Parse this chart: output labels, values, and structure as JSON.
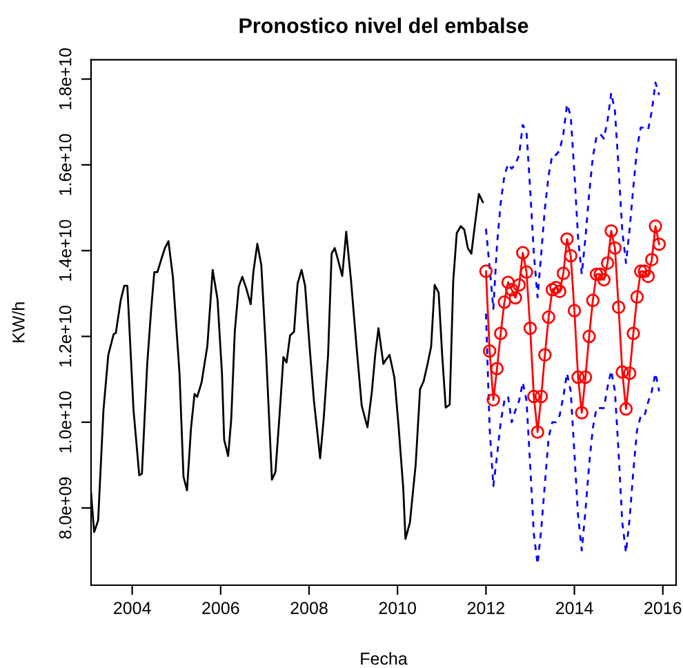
{
  "chart_data": {
    "type": "line",
    "title": "Pronostico nivel del embalse",
    "xlabel": "Fecha",
    "ylabel": "KW/h",
    "xlim": [
      2003.07,
      2016.3
    ],
    "xticks": [
      2004,
      2006,
      2008,
      2010,
      2012,
      2014,
      2016
    ],
    "ylim": [
      6200000000.0,
      18450000000.0
    ],
    "yticks": [
      {
        "value": 8000000000.0,
        "label": "8.0e+09"
      },
      {
        "value": 10000000000.0,
        "label": "1.0e+10"
      },
      {
        "value": 12000000000.0,
        "label": "1.2e+10"
      },
      {
        "value": 14000000000.0,
        "label": "1.4e+10"
      },
      {
        "value": 16000000000.0,
        "label": "1.6e+10"
      },
      {
        "value": 18000000000.0,
        "label": "1.8e+10"
      }
    ],
    "grid": false,
    "series": [
      {
        "color": "#000000",
        "marker": "none",
        "line_style": "solid",
        "x": [
          2003.07,
          2003.14,
          2003.23,
          2003.35,
          2003.46,
          2003.58,
          2003.63,
          2003.74,
          2003.82,
          2003.89,
          2004.03,
          2004.16,
          2004.22,
          2004.34,
          2004.43,
          2004.5,
          2004.57,
          2004.68,
          2004.74,
          2004.82,
          2004.92,
          2005.07,
          2005.16,
          2005.24,
          2005.33,
          2005.41,
          2005.47,
          2005.57,
          2005.7,
          2005.82,
          2005.93,
          2006.03,
          2006.08,
          2006.17,
          2006.24,
          2006.32,
          2006.41,
          2006.49,
          2006.58,
          2006.68,
          2006.74,
          2006.83,
          2006.92,
          2007.03,
          2007.16,
          2007.24,
          2007.34,
          2007.42,
          2007.49,
          2007.57,
          2007.66,
          2007.74,
          2007.83,
          2007.91,
          2008.01,
          2008.11,
          2008.25,
          2008.33,
          2008.43,
          2008.51,
          2008.58,
          2008.64,
          2008.75,
          2008.84,
          2008.95,
          2009.08,
          2009.19,
          2009.32,
          2009.42,
          2009.5,
          2009.57,
          2009.68,
          2009.74,
          2009.82,
          2009.93,
          2010.02,
          2010.13,
          2010.18,
          2010.28,
          2010.41,
          2010.51,
          2010.59,
          2010.68,
          2010.76,
          2010.84,
          2010.93,
          2011.01,
          2011.09,
          2011.18,
          2011.26,
          2011.34,
          2011.43,
          2011.51,
          2011.59,
          2011.67,
          2011.76,
          2011.84,
          2011.93
        ],
        "values": [
          8350000000.0,
          7440000000.0,
          7710000000.0,
          10280000000.0,
          11570000000.0,
          12050000000.0,
          12080000000.0,
          12840000000.0,
          13180000000.0,
          13180000000.0,
          10280000000.0,
          8760000000.0,
          8800000000.0,
          11360000000.0,
          12640000000.0,
          13500000000.0,
          13500000000.0,
          13870000000.0,
          14060000000.0,
          14220000000.0,
          13390000000.0,
          11140000000.0,
          8730000000.0,
          8410000000.0,
          9860000000.0,
          10660000000.0,
          10590000000.0,
          10930000000.0,
          11780000000.0,
          13550000000.0,
          12860000000.0,
          11140000000.0,
          9590000000.0,
          9210000000.0,
          10070000000.0,
          12110000000.0,
          13160000000.0,
          13390000000.0,
          13120000000.0,
          12750000000.0,
          13500000000.0,
          14160000000.0,
          13660000000.0,
          11570000000.0,
          8660000000.0,
          8840000000.0,
          10280000000.0,
          11520000000.0,
          11390000000.0,
          12020000000.0,
          12110000000.0,
          13230000000.0,
          13550000000.0,
          13180000000.0,
          11780000000.0,
          10500000000.0,
          9160000000.0,
          10070000000.0,
          11570000000.0,
          13930000000.0,
          14060000000.0,
          13840000000.0,
          13410000000.0,
          14440000000.0,
          13290000000.0,
          11680000000.0,
          10390000000.0,
          9880000000.0,
          10710000000.0,
          11620000000.0,
          12190000000.0,
          11360000000.0,
          11460000000.0,
          11570000000.0,
          11040000000.0,
          9960000000.0,
          8460000000.0,
          7280000000.0,
          7660000000.0,
          9000000000.0,
          10770000000.0,
          10950000000.0,
          11360000000.0,
          11760000000.0,
          13200000000.0,
          13020000000.0,
          11570000000.0,
          10340000000.0,
          10410000000.0,
          13290000000.0,
          14410000000.0,
          14570000000.0,
          14490000000.0,
          14060000000.0,
          13930000000.0,
          14680000000.0,
          15320000000.0,
          15130000000.0
        ]
      },
      {
        "color": "#0000ff",
        "marker": "none",
        "line_style": "dashed",
        "x": [
          2012.0,
          2012.083,
          2012.167,
          2012.25,
          2012.333,
          2012.417,
          2012.5,
          2012.583,
          2012.667,
          2012.75,
          2012.833,
          2012.917,
          2013.0,
          2013.083,
          2013.167,
          2013.25,
          2013.333,
          2013.417,
          2013.5,
          2013.583,
          2013.667,
          2013.75,
          2013.833,
          2013.917,
          2014.0,
          2014.083,
          2014.167,
          2014.25,
          2014.333,
          2014.417,
          2014.5,
          2014.583,
          2014.667,
          2014.75,
          2014.833,
          2014.917,
          2015.0,
          2015.083,
          2015.167,
          2015.25,
          2015.333,
          2015.417,
          2015.5,
          2015.583,
          2015.667,
          2015.75,
          2015.833,
          2015.917
        ],
        "values": [
          14510000000.0,
          13610000000.0,
          12640000000.0,
          14140000000.0,
          15110000000.0,
          15750000000.0,
          16020000000.0,
          15910000000.0,
          16020000000.0,
          16230000000.0,
          16930000000.0,
          16770000000.0,
          15430000000.0,
          13930000000.0,
          12910000000.0,
          13930000000.0,
          14990000000.0,
          15750000000.0,
          16230000000.0,
          16230000000.0,
          16340000000.0,
          16720000000.0,
          17410000000.0,
          17140000000.0,
          15810000000.0,
          14300000000.0,
          13450000000.0,
          14300000000.0,
          15320000000.0,
          16180000000.0,
          16660000000.0,
          16720000000.0,
          16610000000.0,
          17040000000.0,
          17680000000.0,
          17250000000.0,
          15910000000.0,
          14460000000.0,
          13710000000.0,
          14510000000.0,
          15480000000.0,
          16390000000.0,
          16870000000.0,
          16870000000.0,
          16820000000.0,
          17250000000.0,
          17920000000.0,
          17630000000.0
        ]
      },
      {
        "color": "#0000ff",
        "marker": "none",
        "line_style": "dashed",
        "x": [
          2012.0,
          2012.083,
          2012.167,
          2012.25,
          2012.333,
          2012.417,
          2012.5,
          2012.583,
          2012.667,
          2012.75,
          2012.833,
          2012.917,
          2013.0,
          2013.083,
          2013.167,
          2013.25,
          2013.333,
          2013.417,
          2013.5,
          2013.583,
          2013.667,
          2013.75,
          2013.833,
          2013.917,
          2014.0,
          2014.083,
          2014.167,
          2014.25,
          2014.333,
          2014.417,
          2014.5,
          2014.583,
          2014.667,
          2014.75,
          2014.833,
          2014.917,
          2015.0,
          2015.083,
          2015.167,
          2015.25,
          2015.333,
          2015.417,
          2015.5,
          2015.583,
          2015.667,
          2015.75,
          2015.833,
          2015.917
        ],
        "values": [
          12530000000.0,
          9860000000.0,
          8510000000.0,
          9210000000.0,
          10000000000.0,
          10500000000.0,
          10600000000.0,
          10000000000.0,
          10280000000.0,
          10500000000.0,
          10930000000.0,
          10500000000.0,
          9000000000.0,
          7390000000.0,
          6690000000.0,
          7500000000.0,
          8570000000.0,
          9640000000.0,
          10000000000.0,
          10000000000.0,
          10160000000.0,
          10600000000.0,
          11140000000.0,
          10720000000.0,
          9280000000.0,
          7820000000.0,
          7010000000.0,
          7930000000.0,
          9000000000.0,
          9860000000.0,
          10330000000.0,
          10330000000.0,
          10330000000.0,
          10820000000.0,
          11200000000.0,
          10720000000.0,
          9280000000.0,
          7660000000.0,
          6960000000.0,
          7760000000.0,
          8860000000.0,
          9820000000.0,
          10140000000.0,
          10140000000.0,
          10470000000.0,
          10720000000.0,
          11140000000.0,
          10720000000.0
        ]
      },
      {
        "color": "#ff0000",
        "marker": "circle",
        "line_style": "solid",
        "x": [
          2012.0,
          2012.083,
          2012.167,
          2012.25,
          2012.333,
          2012.417,
          2012.5,
          2012.583,
          2012.667,
          2012.75,
          2012.833,
          2012.917,
          2013.0,
          2013.083,
          2013.167,
          2013.25,
          2013.333,
          2013.417,
          2013.5,
          2013.583,
          2013.667,
          2013.75,
          2013.833,
          2013.917,
          2014.0,
          2014.083,
          2014.167,
          2014.25,
          2014.333,
          2014.417,
          2014.5,
          2014.583,
          2014.667,
          2014.75,
          2014.833,
          2014.917,
          2015.0,
          2015.083,
          2015.167,
          2015.25,
          2015.333,
          2015.417,
          2015.5,
          2015.583,
          2015.667,
          2015.75,
          2015.833,
          2015.917
        ],
        "values": [
          13520000000.0,
          11660000000.0,
          10520000000.0,
          11250000000.0,
          12070000000.0,
          12800000000.0,
          13260000000.0,
          13090000000.0,
          12900000000.0,
          13200000000.0,
          13950000000.0,
          13500000000.0,
          12190000000.0,
          10600000000.0,
          9770000000.0,
          10600000000.0,
          11570000000.0,
          12450000000.0,
          13090000000.0,
          13140000000.0,
          13050000000.0,
          13470000000.0,
          14270000000.0,
          13880000000.0,
          12600000000.0,
          11050000000.0,
          10220000000.0,
          11050000000.0,
          12000000000.0,
          12840000000.0,
          13450000000.0,
          13450000000.0,
          13320000000.0,
          13710000000.0,
          14460000000.0,
          14060000000.0,
          12680000000.0,
          11170000000.0,
          10310000000.0,
          11140000000.0,
          12070000000.0,
          12920000000.0,
          13520000000.0,
          13520000000.0,
          13400000000.0,
          13790000000.0,
          14570000000.0,
          14150000000.0
        ]
      }
    ]
  }
}
